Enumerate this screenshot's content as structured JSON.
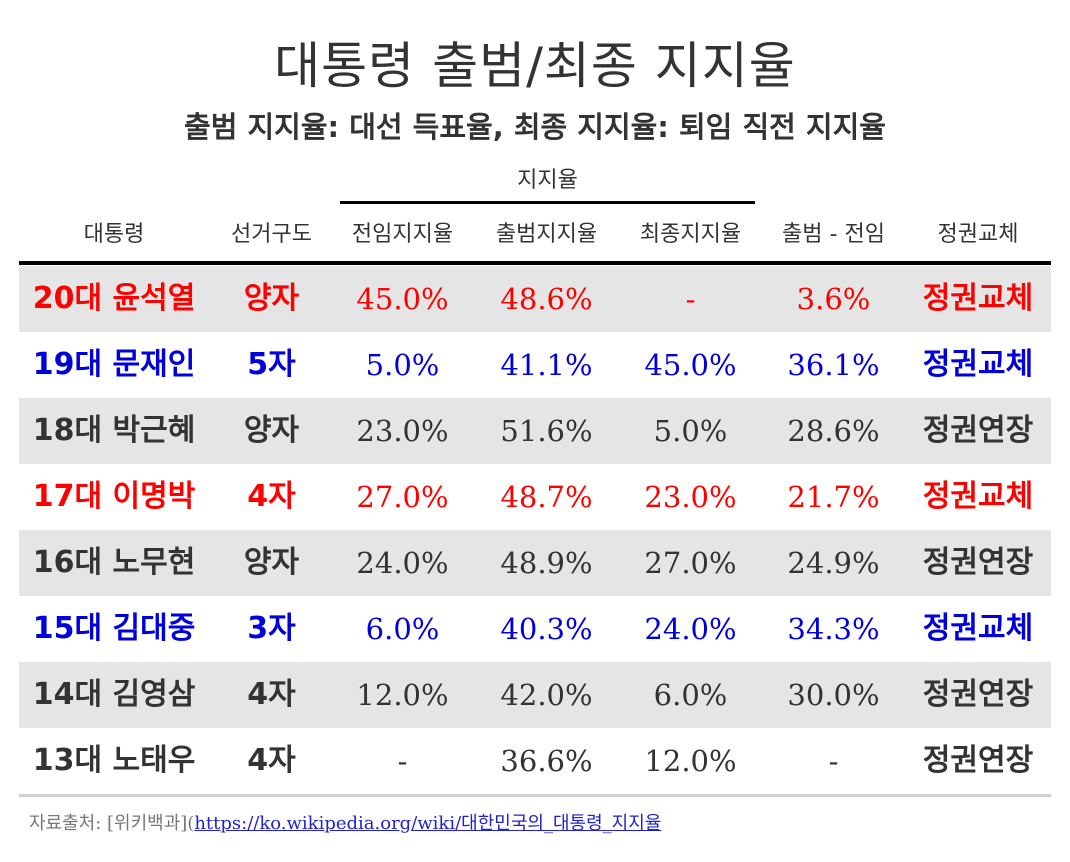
{
  "title": "대통령 출범/최종 지지율",
  "subtitle": "출범 지지율: 대선 득표율, 최종 지지율: 퇴임 직전 지지율",
  "spanner_label": "지지율",
  "columns": {
    "president": "대통령",
    "election": "선거구도",
    "prev": "전임지지율",
    "launch": "출범지지율",
    "final": "최종지지율",
    "diff": "출범 - 전임",
    "change": "정권교체"
  },
  "colors": {
    "red": "#ff0000",
    "blue": "#0000dd",
    "default": "#333333",
    "shade": "#e5e5e5"
  },
  "rows": [
    {
      "president": "20대 윤석열",
      "election": "양자",
      "prev": "45.0%",
      "launch": "48.6%",
      "final": "-",
      "diff": "3.6%",
      "change": "정권교체",
      "color": "red",
      "shaded": true
    },
    {
      "president": "19대 문재인",
      "election": "5자",
      "prev": "5.0%",
      "launch": "41.1%",
      "final": "45.0%",
      "diff": "36.1%",
      "change": "정권교체",
      "color": "blue",
      "shaded": false
    },
    {
      "president": "18대 박근혜",
      "election": "양자",
      "prev": "23.0%",
      "launch": "51.6%",
      "final": "5.0%",
      "diff": "28.6%",
      "change": "정권연장",
      "color": "default",
      "shaded": true
    },
    {
      "president": "17대 이명박",
      "election": "4자",
      "prev": "27.0%",
      "launch": "48.7%",
      "final": "23.0%",
      "diff": "21.7%",
      "change": "정권교체",
      "color": "red",
      "shaded": false
    },
    {
      "president": "16대 노무현",
      "election": "양자",
      "prev": "24.0%",
      "launch": "48.9%",
      "final": "27.0%",
      "diff": "24.9%",
      "change": "정권연장",
      "color": "default",
      "shaded": true
    },
    {
      "president": "15대 김대중",
      "election": "3자",
      "prev": "6.0%",
      "launch": "40.3%",
      "final": "24.0%",
      "diff": "34.3%",
      "change": "정권교체",
      "color": "blue",
      "shaded": false
    },
    {
      "president": "14대 김영삼",
      "election": "4자",
      "prev": "12.0%",
      "launch": "42.0%",
      "final": "6.0%",
      "diff": "30.0%",
      "change": "정권연장",
      "color": "default",
      "shaded": true
    },
    {
      "president": "13대 노태우",
      "election": "4자",
      "prev": "-",
      "launch": "36.6%",
      "final": "12.0%",
      "diff": "-",
      "change": "정권연장",
      "color": "default",
      "shaded": false
    }
  ],
  "source": {
    "prefix": "자료출처: [위키백과](",
    "link": "https://ko.wikipedia.org/wiki/대한민국의_대통령_지지율"
  }
}
